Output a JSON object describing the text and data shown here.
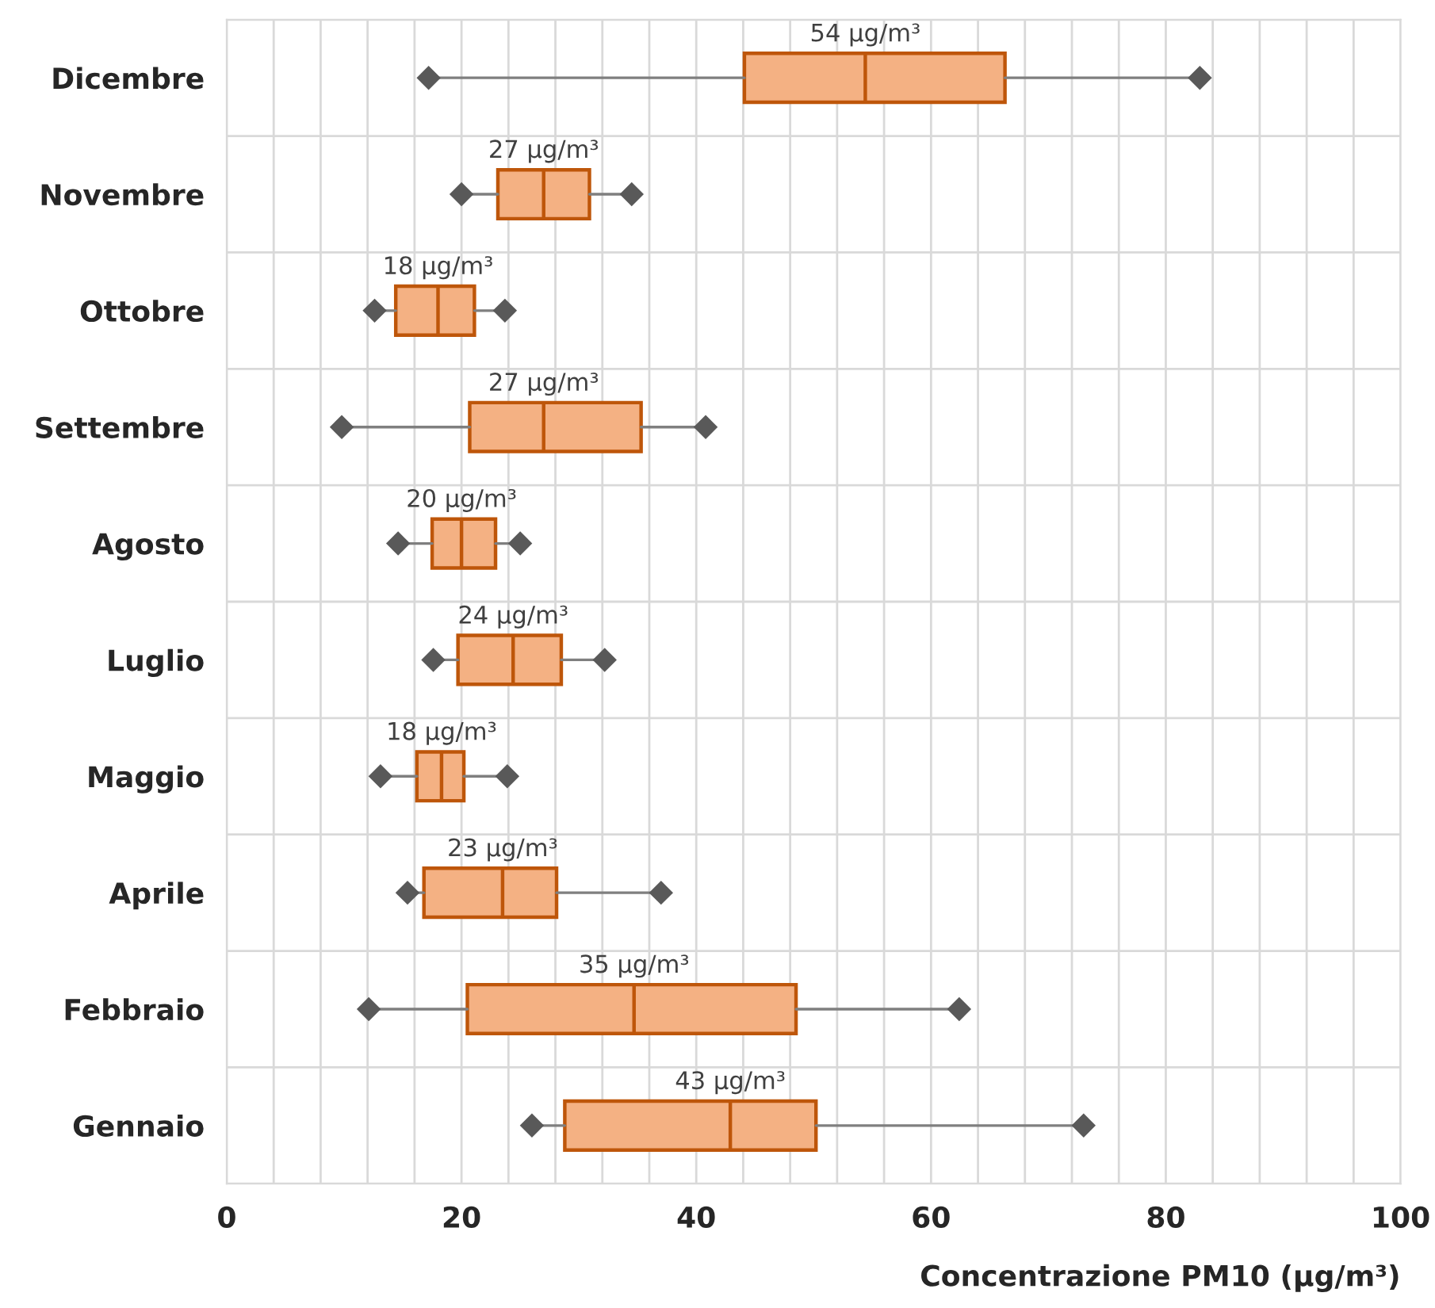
{
  "chart_data": {
    "type": "box",
    "orientation": "horizontal",
    "xlabel": "Concentrazione PM10 (μg/m³)",
    "categories": [
      "Dicembre",
      "Novembre",
      "Ottobre",
      "Settembre",
      "Agosto",
      "Luglio",
      "Maggio",
      "Aprile",
      "Febbraio",
      "Gennaio"
    ],
    "series": [
      {
        "color": "#f4b183",
        "boxes": [
          {
            "low": 17.2,
            "q1": 44.1,
            "median": 54.4,
            "q3": 66.3,
            "high": 82.9
          },
          {
            "low": 20.0,
            "q1": 23.1,
            "median": 27.0,
            "q3": 30.9,
            "high": 34.5
          },
          {
            "low": 12.6,
            "q1": 14.4,
            "median": 18.0,
            "q3": 21.1,
            "high": 23.7
          },
          {
            "low": 9.8,
            "q1": 20.7,
            "median": 27.0,
            "q3": 35.3,
            "high": 40.8
          },
          {
            "low": 14.6,
            "q1": 17.5,
            "median": 20.0,
            "q3": 22.9,
            "high": 25.0
          },
          {
            "low": 17.6,
            "q1": 19.7,
            "median": 24.4,
            "q3": 28.5,
            "high": 32.2
          },
          {
            "low": 13.1,
            "q1": 16.2,
            "median": 18.3,
            "q3": 20.2,
            "high": 23.9
          },
          {
            "low": 15.4,
            "q1": 16.8,
            "median": 23.5,
            "q3": 28.1,
            "high": 37.0
          },
          {
            "low": 12.1,
            "q1": 20.5,
            "median": 34.7,
            "q3": 48.5,
            "high": 62.4
          },
          {
            "low": 26.0,
            "q1": 28.8,
            "median": 42.9,
            "q3": 50.2,
            "high": 73.0
          }
        ]
      },
      {
        "type": "scatter",
        "color": "#595959",
        "marker": "diamond",
        "x": [
          "Dicembre",
          "Novembre",
          "Ottobre",
          "Settembre",
          "Agosto",
          "Luglio",
          "Maggio",
          "Aprile",
          "Febbraio",
          "Gennaio"
        ],
        "values": [
          17.2,
          20.0,
          12.6,
          9.8,
          14.6,
          17.6,
          13.1,
          15.4,
          12.1,
          26.0
        ]
      },
      {
        "type": "scatter",
        "color": "#595959",
        "marker": "diamond",
        "x": [
          "Dicembre",
          "Novembre",
          "Ottobre",
          "Settembre",
          "Agosto",
          "Luglio",
          "Maggio",
          "Aprile",
          "Febbraio",
          "Gennaio"
        ],
        "values": [
          82.9,
          34.5,
          23.7,
          40.8,
          25.0,
          32.2,
          23.9,
          37.0,
          62.4,
          73.0
        ]
      }
    ],
    "xlim": [
      0,
      100
    ],
    "xticks": [
      0,
      {
        "value": 4,
        "label": null
      },
      {
        "value": 8,
        "label": null
      },
      {
        "value": 12,
        "label": null
      },
      {
        "value": 16,
        "label": null
      },
      20,
      {
        "value": 24,
        "label": null
      },
      {
        "value": 28,
        "label": null
      },
      {
        "value": 32,
        "label": null
      },
      {
        "value": 36,
        "label": null
      },
      40,
      {
        "value": 44,
        "label": null
      },
      {
        "value": 48,
        "label": null
      },
      {
        "value": 52,
        "label": null
      },
      {
        "value": 56,
        "label": null
      },
      60,
      {
        "value": 64,
        "label": null
      },
      {
        "value": 68,
        "label": null
      },
      {
        "value": 72,
        "label": null
      },
      {
        "value": 76,
        "label": null
      },
      80,
      {
        "value": 84,
        "label": null
      },
      {
        "value": 88,
        "label": null
      },
      {
        "value": 92,
        "label": null
      },
      {
        "value": 96,
        "label": null
      },
      100
    ],
    "grid": true,
    "annotations": [
      {
        "text": "54 μg/m³",
        "x": 54.4,
        "y": "Dicembre"
      },
      {
        "text": "27 μg/m³",
        "x": 27.0,
        "y": "Novembre"
      },
      {
        "text": "18 μg/m³",
        "x": 18.0,
        "y": "Ottobre"
      },
      {
        "text": "27 μg/m³",
        "x": 27.0,
        "y": "Settembre"
      },
      {
        "text": "20 μg/m³",
        "x": 20.0,
        "y": "Agosto"
      },
      {
        "text": "24 μg/m³",
        "x": 24.4,
        "y": "Luglio"
      },
      {
        "text": "18 μg/m³",
        "x": 18.3,
        "y": "Maggio"
      },
      {
        "text": "23 μg/m³",
        "x": 23.5,
        "y": "Aprile"
      },
      {
        "text": "35 μg/m³",
        "x": 34.7,
        "y": "Febbraio"
      },
      {
        "text": "43 μg/m³",
        "x": 42.9,
        "y": "Gennaio"
      }
    ]
  }
}
